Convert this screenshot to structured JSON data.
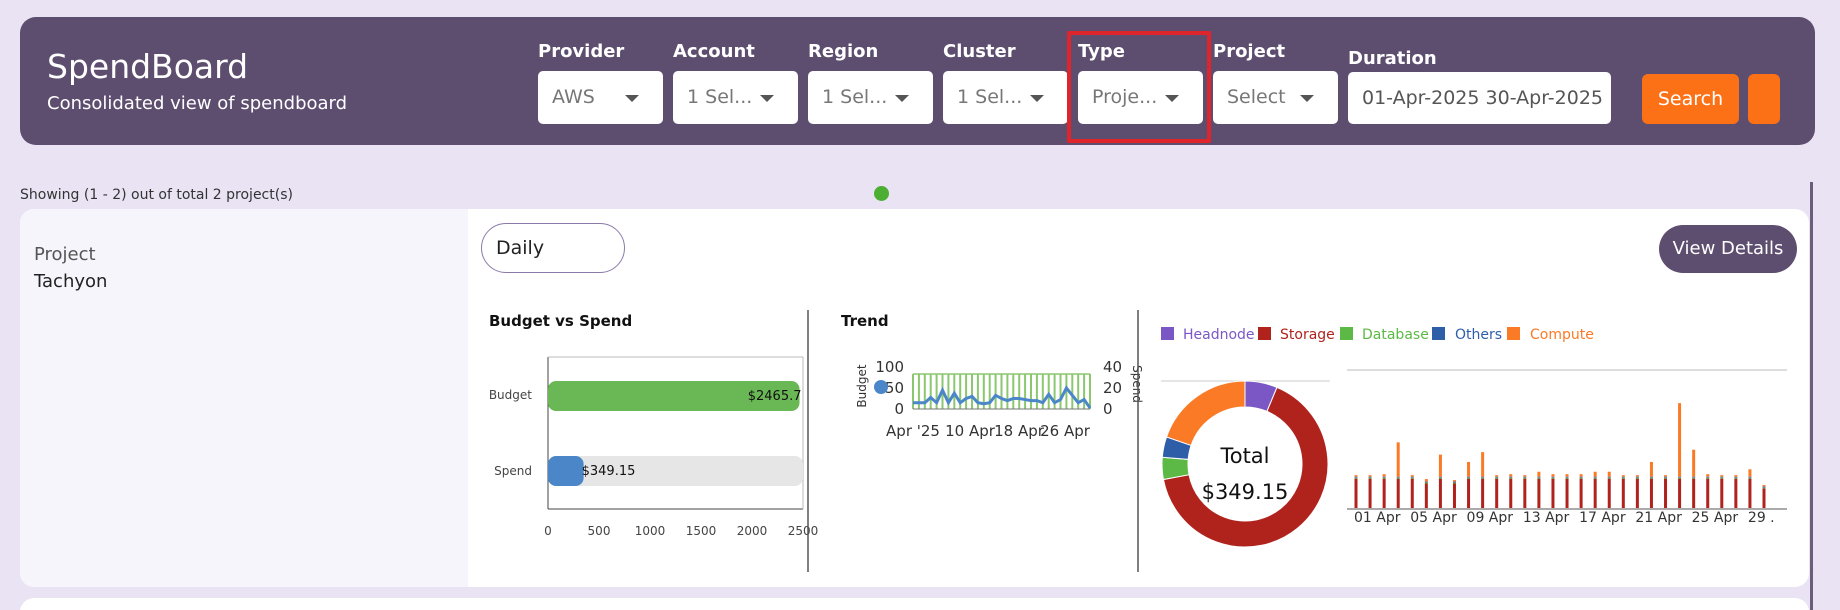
{
  "header": {
    "title": "SpendBoard",
    "subtitle": "Consolidated view of spendboard",
    "filters": [
      {
        "label": "Provider",
        "value": "AWS"
      },
      {
        "label": "Account",
        "value": "1 Sel..."
      },
      {
        "label": "Region",
        "value": "1 Sel..."
      },
      {
        "label": "Cluster",
        "value": "1 Sel..."
      },
      {
        "label": "Type",
        "value": "Proje..."
      },
      {
        "label": "Project",
        "value": "Select"
      }
    ],
    "duration_label": "Duration",
    "duration_value": "01-Apr-2025  30-Apr-2025",
    "search_label": "Search"
  },
  "results": {
    "showing": "Showing (1 - 2) out of total 2 project(s)"
  },
  "card": {
    "project_label": "Project",
    "project_name": "Tachyon",
    "period_value": "Daily",
    "view_details_label": "View Details"
  },
  "colors": {
    "header_bg": "#5d4e6f",
    "accent_orange": "#fd7116",
    "budget_green": "#6ab755",
    "spend_blue": "#4a86c8",
    "headnode": "#7b57c6",
    "storage": "#b0231c",
    "database": "#5cb946",
    "others": "#2f5ea9",
    "compute": "#fa7a26"
  },
  "chart_data": [
    {
      "type": "bar",
      "title": "Budget vs Spend",
      "orientation": "horizontal",
      "categories": [
        "Budget",
        "Spend"
      ],
      "values": [
        2465.7,
        349.15
      ],
      "data_labels": [
        "$2465.7",
        "$349.15"
      ],
      "xlim": [
        0,
        2500
      ],
      "xticks": [
        "0",
        "500",
        "1000",
        "1500",
        "2000",
        "2500"
      ]
    },
    {
      "type": "line",
      "title": "Trend",
      "ylabel_left": "Budget",
      "ylabel_right": "Spend",
      "y_left_ticks": [
        "100",
        "50",
        "0"
      ],
      "y_right_ticks": [
        "40",
        "20",
        "0"
      ],
      "xticks": [
        "Apr '25",
        "10 Apr",
        "18 Apr",
        "26 Apr"
      ],
      "ylim_right": [
        0,
        40
      ],
      "series": [
        {
          "values": [
            6,
            6,
            6,
            11,
            6,
            18,
            6,
            15,
            6,
            10,
            12,
            6,
            5,
            6,
            13,
            10,
            8,
            10,
            10,
            9,
            8,
            8,
            6,
            14,
            6,
            9,
            20,
            13,
            6,
            9,
            1
          ]
        }
      ]
    },
    {
      "type": "pie",
      "subtype": "donut",
      "center_label": "Total",
      "center_value": "$349.15",
      "categories": [
        "Headnode",
        "Storage",
        "Database",
        "Others",
        "Compute"
      ],
      "values": [
        22,
        230,
        15,
        14,
        69
      ]
    },
    {
      "type": "bar",
      "stacked": true,
      "categories": [
        "01 Apr",
        "02 Apr",
        "03 Apr",
        "04 Apr",
        "05 Apr",
        "06 Apr",
        "07 Apr",
        "08 Apr",
        "09 Apr",
        "10 Apr",
        "11 Apr",
        "12 Apr",
        "13 Apr",
        "14 Apr",
        "15 Apr",
        "16 Apr",
        "17 Apr",
        "18 Apr",
        "19 Apr",
        "20 Apr",
        "21 Apr",
        "22 Apr",
        "23 Apr",
        "24 Apr",
        "25 Apr",
        "26 Apr",
        "27 Apr",
        "28 Apr",
        "29 Apr",
        "30 Apr"
      ],
      "xticks": [
        "01 Apr",
        "05 Apr",
        "09 Apr",
        "13 Apr",
        "17 Apr",
        "21 Apr",
        "25 Apr",
        "29 ."
      ],
      "series": [
        {
          "name": "Headnode",
          "values": [
            0.1,
            0.1,
            0.1,
            0.1,
            0.1,
            0.1,
            0.1,
            0.1,
            0.1,
            0.1,
            0.1,
            0.1,
            0.1,
            0.1,
            0.1,
            0.1,
            0.1,
            0.1,
            0.1,
            0.1,
            0.1,
            0.1,
            0.1,
            0.1,
            0.1,
            0.1,
            0.1,
            0.1,
            0.1,
            0.1
          ]
        },
        {
          "name": "Storage",
          "values": [
            6,
            6,
            6,
            6,
            6,
            5,
            6,
            5,
            6,
            6,
            6,
            6,
            6,
            6,
            6,
            6,
            6,
            6,
            6,
            6,
            6,
            6,
            6,
            6,
            6,
            6,
            6,
            6,
            6,
            4
          ]
        },
        {
          "name": "Database",
          "values": [
            0.2,
            0.2,
            0.2,
            0.2,
            0.2,
            0.2,
            0.2,
            0.2,
            0.2,
            0.2,
            0.2,
            0.2,
            0.2,
            0.2,
            0.2,
            0.2,
            0.2,
            0.2,
            0.2,
            0.2,
            0.2,
            0.2,
            0.2,
            0.2,
            0.2,
            0.2,
            0.2,
            0.2,
            0.2,
            0.2
          ]
        },
        {
          "name": "Others",
          "values": [
            0.1,
            0.1,
            0.1,
            0.1,
            0.1,
            0.1,
            0.1,
            0.1,
            0.1,
            0.1,
            0.1,
            0.1,
            0.1,
            0.1,
            0.1,
            0.1,
            0.1,
            0.1,
            0.1,
            0.1,
            0.1,
            0.1,
            0.1,
            0.1,
            0.1,
            0.1,
            0.1,
            0.1,
            0.1,
            0.1
          ]
        },
        {
          "name": "Compute",
          "values": [
            0.3,
            0.3,
            0.5,
            7,
            0.3,
            0.5,
            4.5,
            0.3,
            3,
            5,
            0.3,
            0.5,
            0.3,
            1,
            0.5,
            0.5,
            0.5,
            1,
            1,
            0.3,
            0.3,
            3,
            0.3,
            15,
            5.5,
            0.5,
            0.3,
            0.3,
            1.5,
            0.3
          ]
        }
      ]
    }
  ]
}
